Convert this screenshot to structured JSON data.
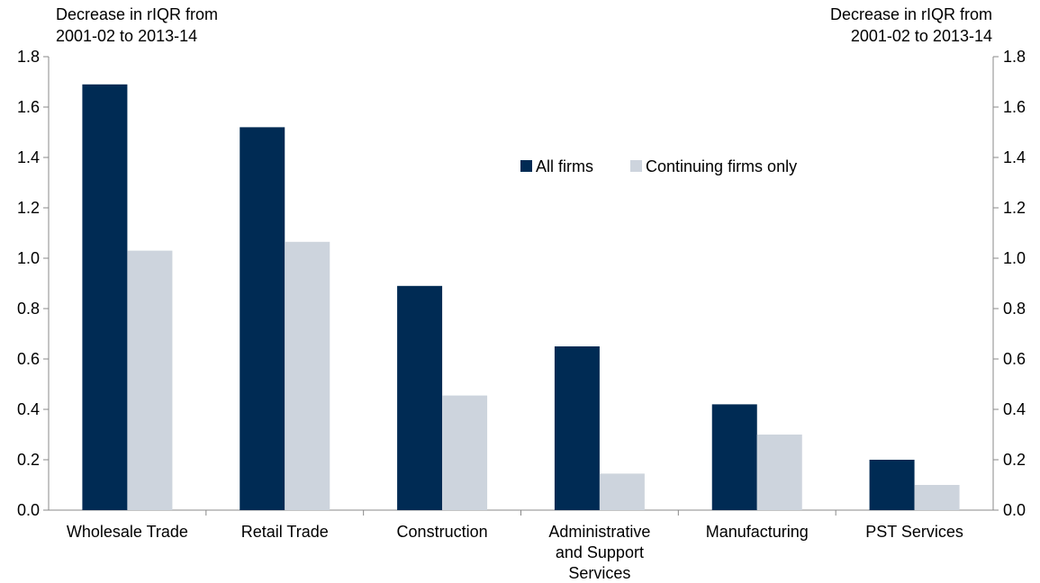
{
  "chart_data": {
    "type": "bar",
    "ylabel_left": [
      "Decrease in rIQR from",
      "2001-02 to 2013-14"
    ],
    "ylabel_right": [
      "Decrease in rIQR from",
      "2001-02 to 2013-14"
    ],
    "ylim": [
      0,
      1.8
    ],
    "yticks": [
      "0.0",
      "0.2",
      "0.4",
      "0.6",
      "0.8",
      "1.0",
      "1.2",
      "1.4",
      "1.6",
      "1.8"
    ],
    "categories": [
      [
        "Wholesale Trade"
      ],
      [
        "Retail Trade"
      ],
      [
        "Construction"
      ],
      [
        "Administrative",
        "and Support",
        "Services"
      ],
      [
        "Manufacturing"
      ],
      [
        "PST Services"
      ]
    ],
    "series": [
      {
        "name": "All firms",
        "color": "#002b54",
        "values": [
          1.69,
          1.52,
          0.89,
          0.65,
          0.42,
          0.2
        ]
      },
      {
        "name": "Continuing firms only",
        "color": "#cdd4dd",
        "values": [
          1.03,
          1.065,
          0.455,
          0.145,
          0.3,
          0.1
        ]
      }
    ],
    "legend_position": "top-center",
    "grid": false
  }
}
